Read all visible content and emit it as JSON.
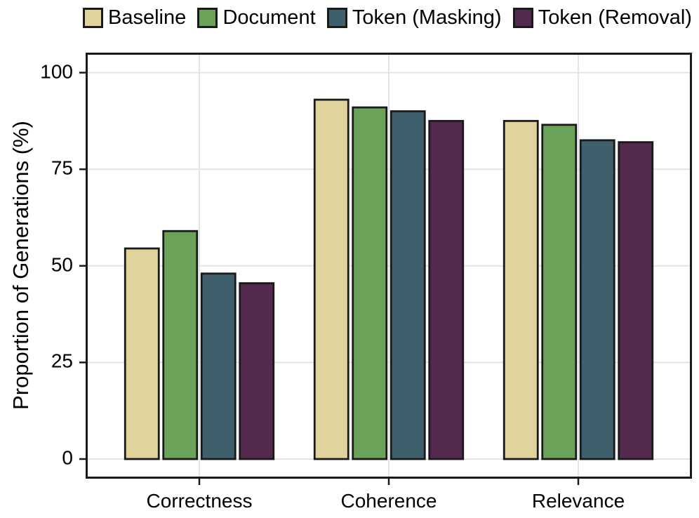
{
  "chart_data": {
    "type": "bar",
    "title": "",
    "xlabel": "",
    "ylabel": "Proportion of Generations (%)",
    "categories": [
      "Correctness",
      "Coherence",
      "Relevance"
    ],
    "series": [
      {
        "name": "Baseline",
        "color": "#e0d39b",
        "values": [
          54.5,
          93.0,
          87.5
        ]
      },
      {
        "name": "Document",
        "color": "#6aa25a",
        "values": [
          59.0,
          91.0,
          86.5
        ]
      },
      {
        "name": "Token (Masking)",
        "color": "#3e5f6c",
        "values": [
          48.0,
          90.0,
          82.5
        ]
      },
      {
        "name": "Token (Removal)",
        "color": "#54294e",
        "values": [
          45.5,
          87.5,
          82.0
        ]
      }
    ],
    "yticks": [
      0,
      25,
      50,
      75,
      100
    ],
    "ylim": [
      -5,
      105
    ],
    "grid": true,
    "legend_position": "top",
    "colors": {
      "bar_border": "#1a1a1a",
      "panel_border": "#1a1a1a",
      "gridline": "#e4e4e4",
      "tick": "#1a1a1a",
      "text": "#000000",
      "background": "#ffffff"
    }
  }
}
